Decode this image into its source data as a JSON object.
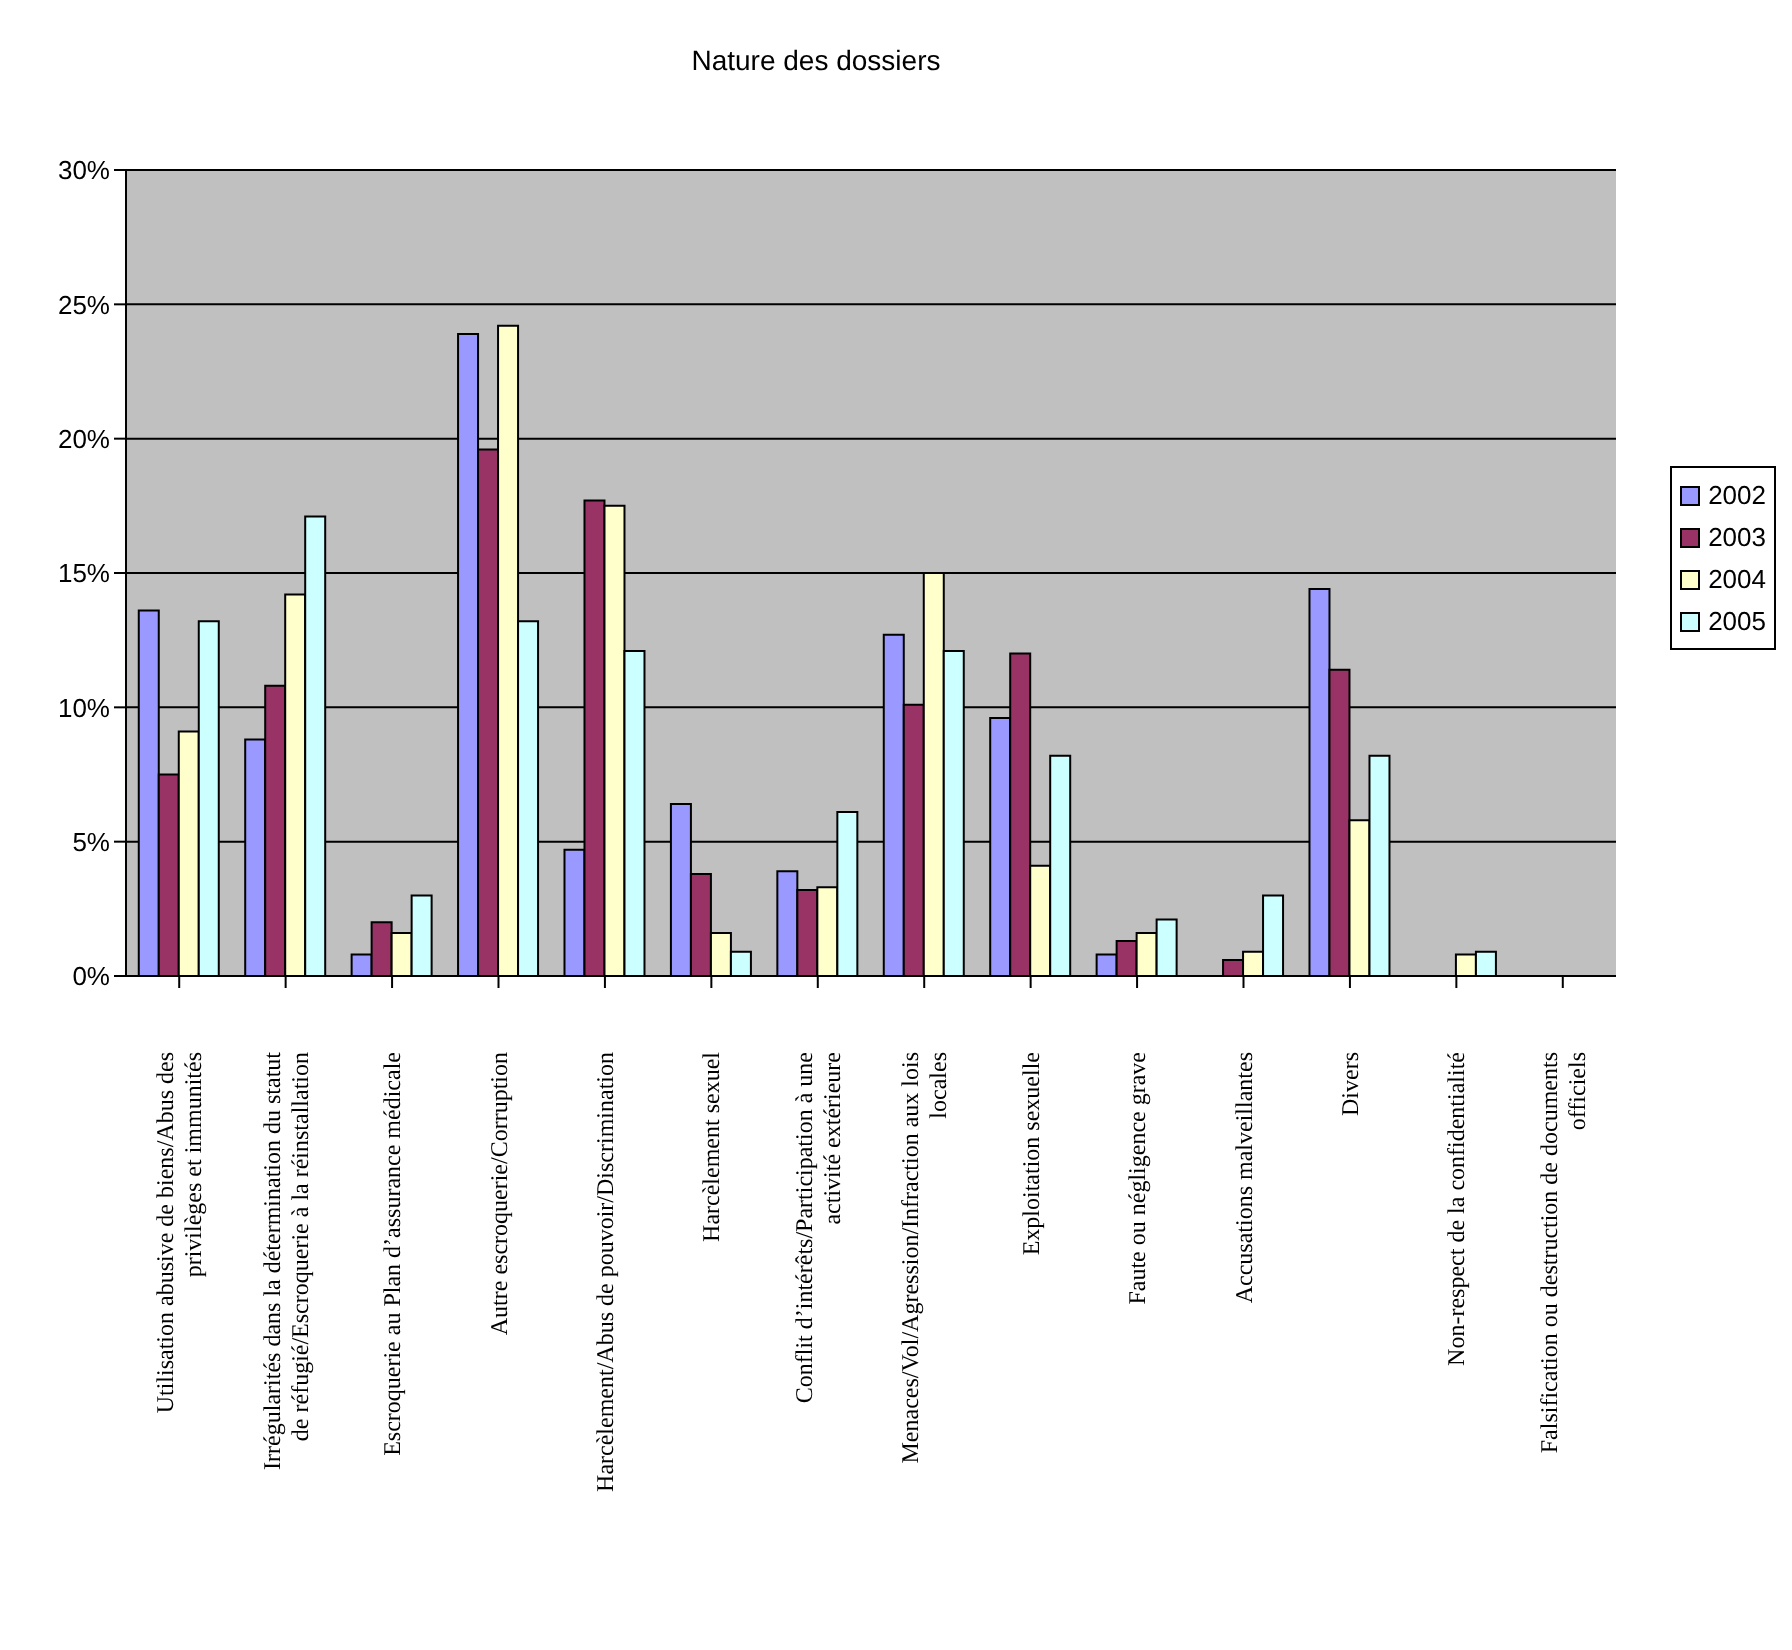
{
  "chart_data": {
    "type": "bar",
    "title": "Nature des dossiers",
    "categories": [
      "Utilisation abusive de biens/Abus des privilèges et immunités",
      "Irrégularités dans la détermination du statut de réfugié/Escroquerie à la réinstallation",
      "Escroquerie au Plan d’assurance médicale",
      "Autre escroquerie/Corruption",
      "Harcèlement/Abus de pouvoir/Discrimination",
      "Harcèlement sexuel",
      "Conflit d’intérêts/Participation à une activité extérieure",
      "Menaces/Vol/Agression/Infraction aux lois locales",
      "Exploitation sexuelle",
      "Faute ou négligence grave",
      "Accusations malveillantes",
      "Divers",
      "Non-respect de la confidentialité",
      "Falsification ou destruction de documents officiels"
    ],
    "series": [
      {
        "name": "2002",
        "color": "#9999ff",
        "values": [
          13.6,
          8.8,
          0.8,
          23.9,
          4.7,
          6.4,
          3.9,
          12.7,
          9.6,
          0.8,
          0,
          14.4,
          0,
          0
        ]
      },
      {
        "name": "2003",
        "color": "#993366",
        "values": [
          7.5,
          10.8,
          2.0,
          19.6,
          17.7,
          3.8,
          3.2,
          10.1,
          12.0,
          1.3,
          0.6,
          11.4,
          0,
          0
        ]
      },
      {
        "name": "2004",
        "color": "#ffffcc",
        "values": [
          9.1,
          14.2,
          1.6,
          24.2,
          17.5,
          1.6,
          3.3,
          15.0,
          4.1,
          1.6,
          0.9,
          5.8,
          0.8,
          0
        ]
      },
      {
        "name": "2005",
        "color": "#ccffff",
        "values": [
          13.2,
          17.1,
          3.0,
          13.2,
          12.1,
          0.9,
          6.1,
          12.1,
          8.2,
          2.1,
          3.0,
          8.2,
          0.9,
          0
        ]
      }
    ],
    "ylim": [
      0,
      30
    ],
    "yticks": [
      {
        "value": 0,
        "label": "0%"
      },
      {
        "value": 5,
        "label": "5%"
      },
      {
        "value": 10,
        "label": "10%"
      },
      {
        "value": 15,
        "label": "15%"
      },
      {
        "value": 20,
        "label": "20%"
      },
      {
        "value": 25,
        "label": "25%"
      },
      {
        "value": 30,
        "label": "30%"
      }
    ],
    "grid": "y",
    "legend": "right"
  }
}
